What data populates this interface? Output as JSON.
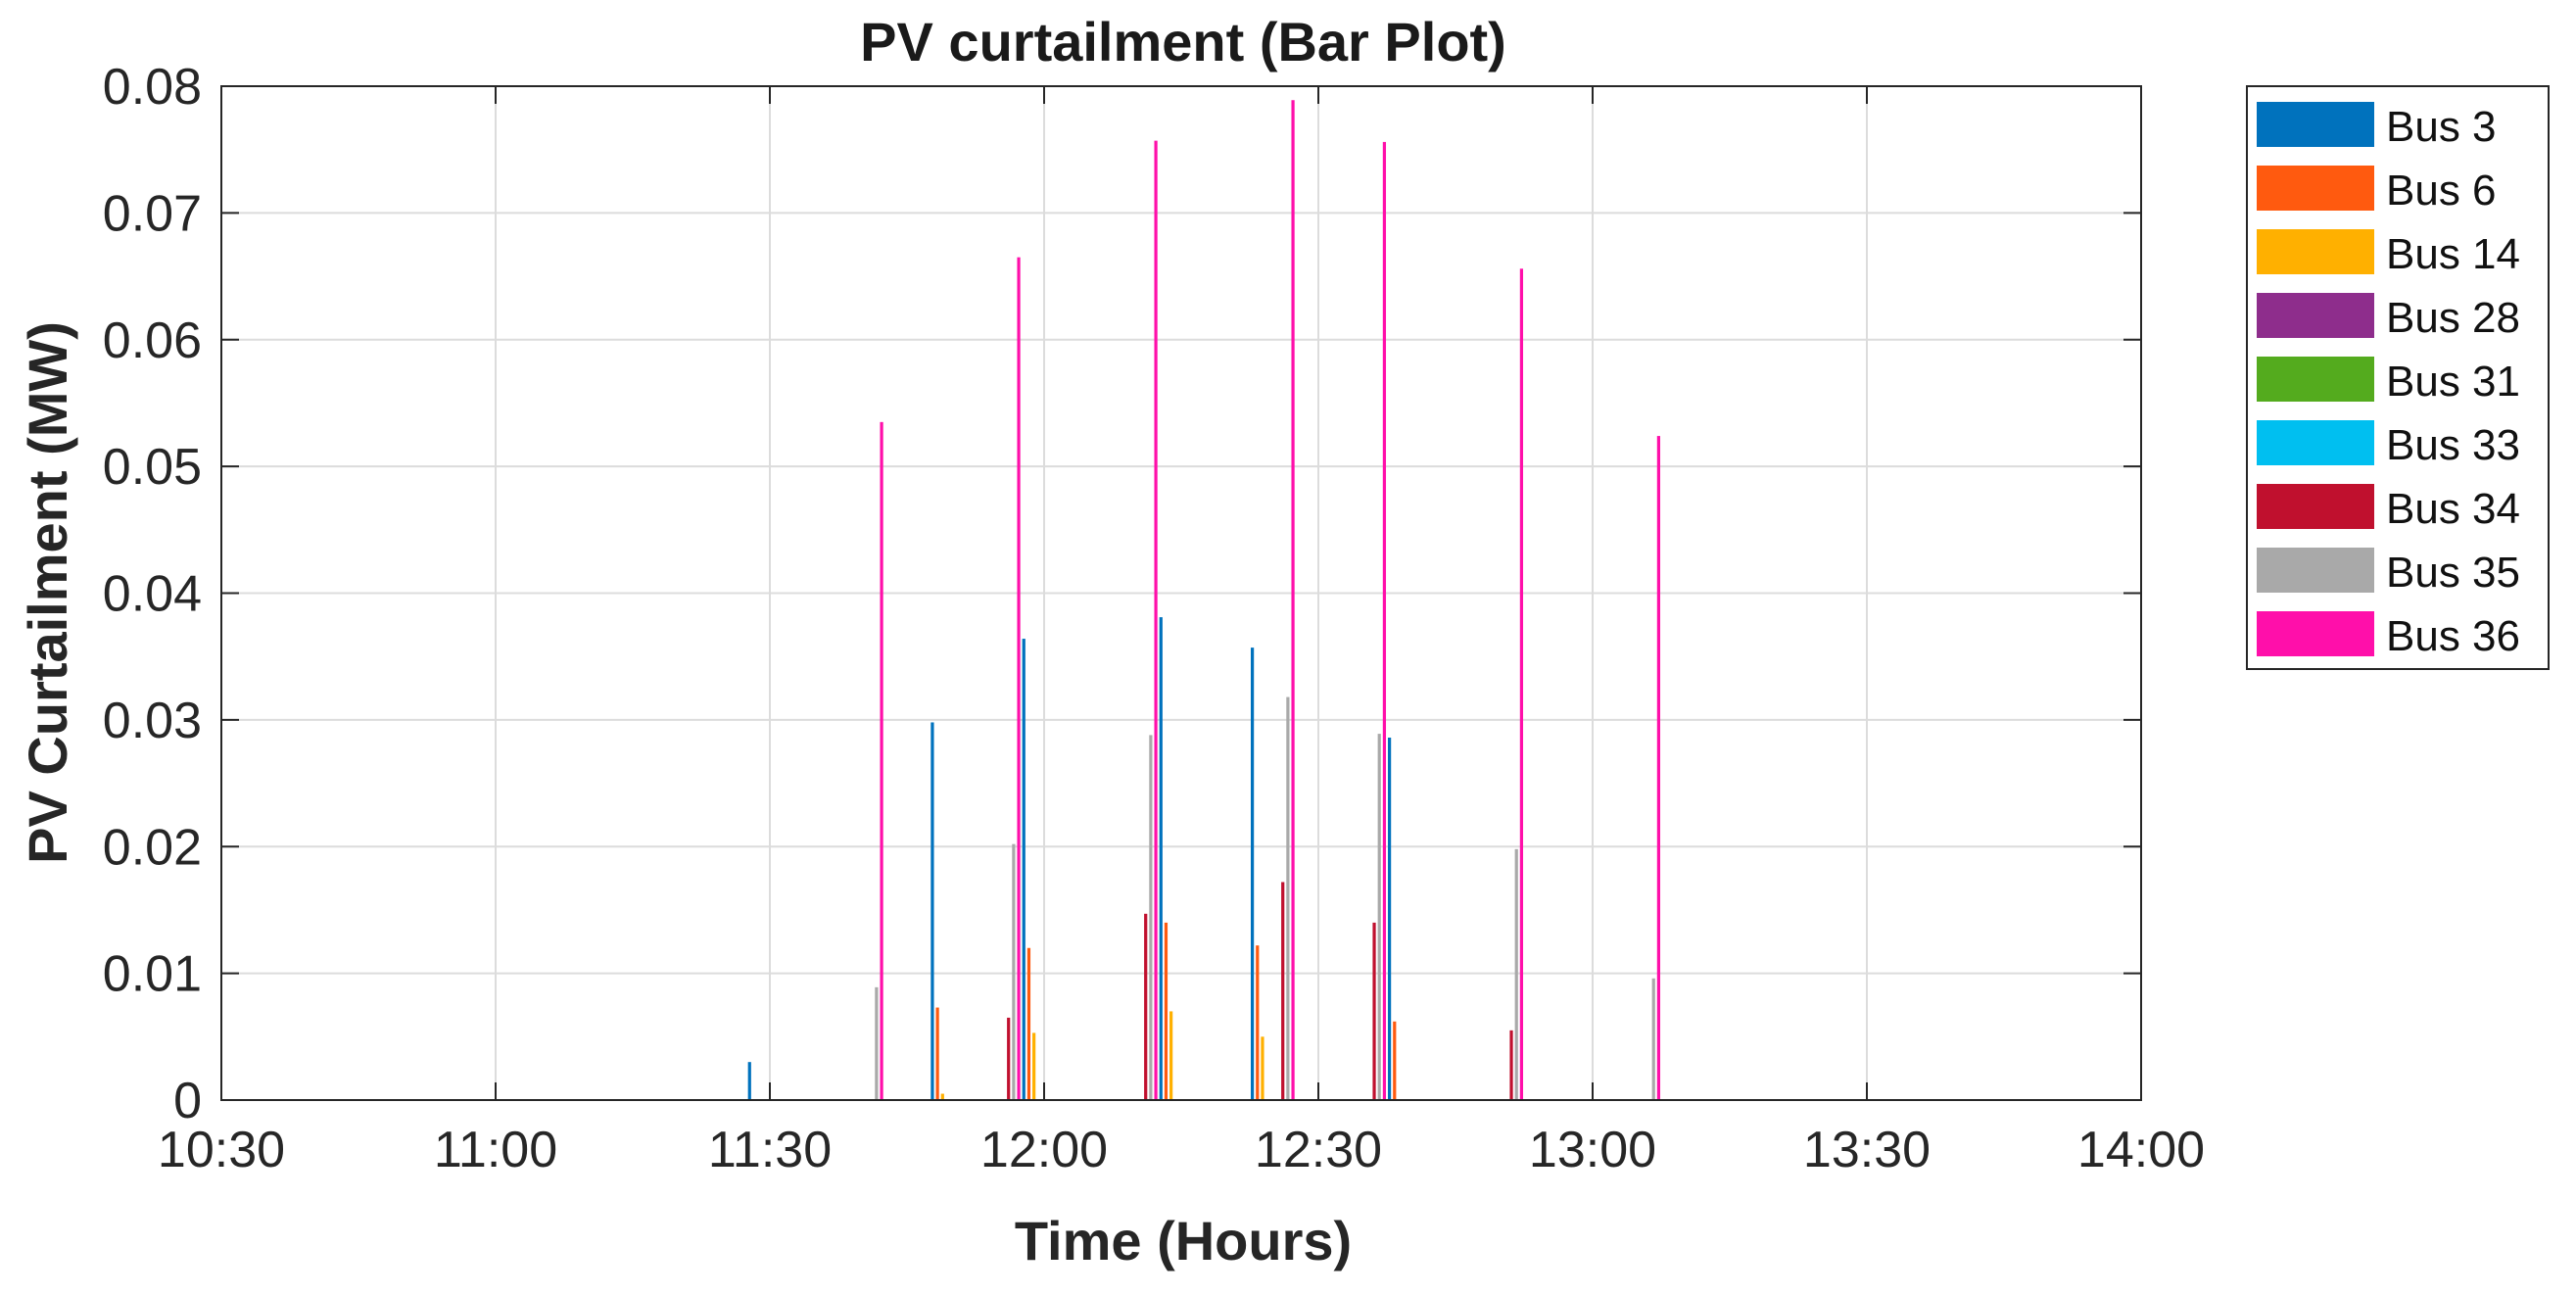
{
  "chart_data": {
    "type": "bar",
    "title": "PV curtailment (Bar Plot)",
    "xlabel": "Time (Hours)",
    "ylabel": "PV Curtailment (MW)",
    "xlim": [
      "10:30",
      "14:00"
    ],
    "ylim": [
      0,
      0.08
    ],
    "x_ticks": [
      "10:30",
      "11:00",
      "11:30",
      "12:00",
      "12:30",
      "13:00",
      "13:30",
      "14:00"
    ],
    "y_ticks": [
      "0",
      "0.01",
      "0.02",
      "0.03",
      "0.04",
      "0.05",
      "0.06",
      "0.07",
      "0.08"
    ],
    "grid": true,
    "legend_position": "outside-right",
    "categories": [
      "11:15",
      "11:20",
      "11:25",
      "11:30",
      "11:35",
      "11:40",
      "11:45",
      "11:50",
      "11:55",
      "12:00",
      "12:05",
      "12:10",
      "12:15",
      "12:20",
      "12:25",
      "12:30",
      "12:35",
      "12:40",
      "12:45",
      "12:50",
      "12:55",
      "13:00",
      "13:05"
    ],
    "series": [
      {
        "name": "Bus 3",
        "color": "#0072BD",
        "values": [
          0,
          0,
          0,
          0.003,
          0,
          0,
          0,
          0.0298,
          0,
          0.0364,
          0,
          0,
          0.0381,
          0,
          0.0357,
          0,
          0,
          0.0286,
          0,
          0,
          0,
          0,
          0
        ]
      },
      {
        "name": "Bus 6",
        "color": "#FF5A0F",
        "values": [
          0,
          0,
          0,
          0,
          0,
          0,
          0,
          0.0073,
          0,
          0.012,
          0,
          0,
          0.014,
          0,
          0.0122,
          0,
          0,
          0.0062,
          0,
          0,
          0,
          0,
          0
        ]
      },
      {
        "name": "Bus 14",
        "color": "#FFB000",
        "values": [
          0,
          0,
          0,
          0,
          0,
          0,
          0,
          0.0005,
          0,
          0.0053,
          0,
          0,
          0.007,
          0,
          0.005,
          0,
          0,
          0,
          0,
          0,
          0,
          0,
          0
        ]
      },
      {
        "name": "Bus 28",
        "color": "#8E2D8C",
        "values": [
          0,
          0,
          0,
          0,
          0,
          0,
          0,
          0,
          0,
          0,
          0,
          0,
          0,
          0,
          0,
          0,
          0,
          0,
          0,
          0,
          0,
          0,
          0
        ]
      },
      {
        "name": "Bus 31",
        "color": "#54AB1E",
        "values": [
          0,
          0,
          0,
          0,
          0,
          0,
          0,
          0,
          0,
          0,
          0,
          0,
          0,
          0,
          0,
          0,
          0,
          0,
          0,
          0,
          0,
          0,
          0
        ]
      },
      {
        "name": "Bus 33",
        "color": "#00BFF0",
        "values": [
          0,
          0,
          0,
          0,
          0,
          0,
          0,
          0,
          0,
          0,
          0,
          0,
          0,
          0,
          0,
          0,
          0,
          0,
          0,
          0,
          0,
          0,
          0
        ]
      },
      {
        "name": "Bus 34",
        "color": "#C0102E",
        "values": [
          0,
          0,
          0,
          0,
          0,
          0,
          0,
          0,
          0.0065,
          0,
          0,
          0.0147,
          0,
          0,
          0.0172,
          0,
          0.014,
          0,
          0,
          0.0055,
          0,
          0,
          0
        ]
      },
      {
        "name": "Bus 35",
        "color": "#A9A9A9",
        "values": [
          0,
          0,
          0,
          0,
          0,
          0.0089,
          0,
          0,
          0.0202,
          0,
          0,
          0.0288,
          0,
          0,
          0.0318,
          0,
          0.0289,
          0,
          0,
          0.0198,
          0,
          0,
          0.0096
        ]
      },
      {
        "name": "Bus 36",
        "color": "#FF0FAA",
        "values": [
          0,
          0,
          0,
          0,
          0,
          0.0535,
          0,
          0,
          0.0665,
          0,
          0,
          0.0757,
          0,
          0,
          0.0789,
          0,
          0.0756,
          0,
          0,
          0.0656,
          0,
          0,
          0.0524
        ]
      }
    ]
  }
}
